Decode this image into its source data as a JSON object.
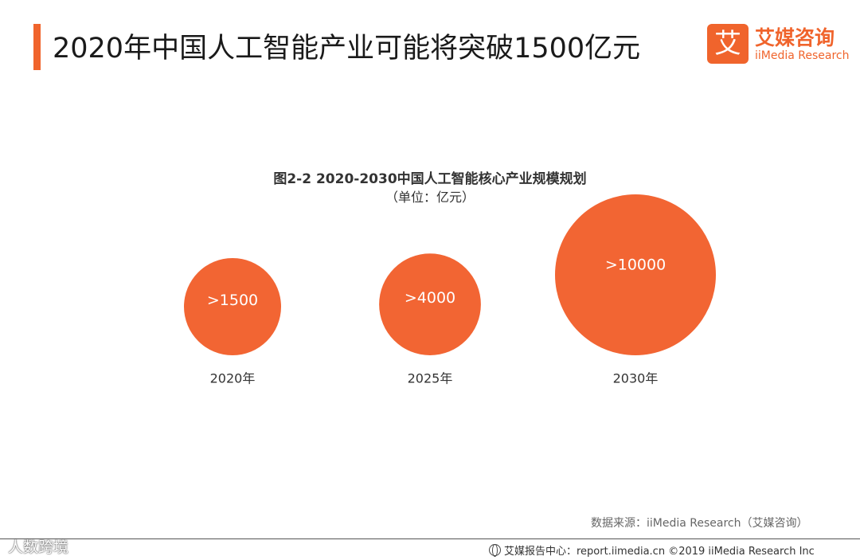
{
  "page": {
    "title": "2020年中国人工智能产业可能将突破1500亿元"
  },
  "logo": {
    "mark": "艾",
    "name_cn": "艾媒咨询",
    "name_en": "iiMedia Research"
  },
  "chart_data": {
    "type": "bubble",
    "title": "图2-2 2020-2030中国人工智能核心产业规模规划",
    "subtitle": "（单位：亿元）",
    "categories": [
      "2020年",
      "2025年",
      "2030年"
    ],
    "values": [
      1500,
      4000,
      10000
    ],
    "labels": [
      ">1500",
      ">4000",
      ">10000"
    ],
    "color": "#f26533",
    "label_color": "#ffffff"
  },
  "source": "数据来源：iiMedia Research（艾媒咨询）",
  "footer": {
    "icon": "globe-icon",
    "text": "艾媒报告中心：report.iimedia.cn  ©2019  iiMedia Research  Inc"
  },
  "watermark": "人数跨境"
}
